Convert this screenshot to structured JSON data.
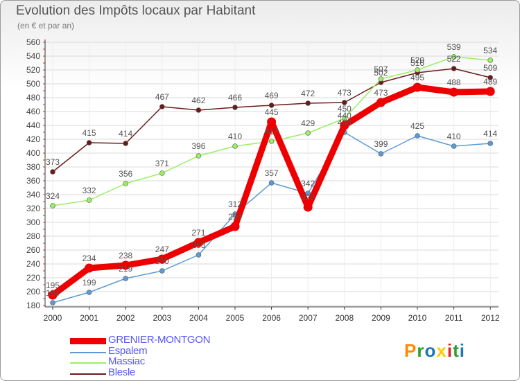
{
  "chart_data": {
    "type": "line",
    "title": "Evolution des Impôts locaux par Habitant",
    "subtitle": "(en € et par an)",
    "x": [
      "2000",
      "2001",
      "2002",
      "2003",
      "2004",
      "2005",
      "2006",
      "2007",
      "2008",
      "2009",
      "2010",
      "2011",
      "2012"
    ],
    "ylim": [
      180,
      560
    ],
    "yticks": [
      180,
      200,
      220,
      240,
      260,
      280,
      300,
      320,
      340,
      360,
      380,
      400,
      420,
      440,
      460,
      480,
      500,
      520,
      540,
      560
    ],
    "series": [
      {
        "name": "Blesle",
        "color": "#6b1a1a",
        "values": [
          373,
          415,
          414,
          467,
          462,
          466,
          469,
          472,
          473,
          502,
          516,
          522,
          509
        ],
        "labels": [
          "373",
          "415",
          "414",
          "467",
          "462",
          "466",
          "469",
          "472",
          "473",
          "502",
          "516",
          "522",
          "509"
        ]
      },
      {
        "name": "Massiac",
        "color": "#99ee66",
        "values": [
          324,
          332,
          356,
          371,
          396,
          410,
          417,
          429,
          450,
          507,
          520,
          539,
          534
        ],
        "labels": [
          "324",
          "332",
          "356",
          "371",
          "396",
          "410",
          "417",
          "429",
          "450",
          "507",
          "520",
          "539",
          "534"
        ]
      },
      {
        "name": "Espalem",
        "color": "#5b9bd5",
        "values": [
          184,
          199,
          219,
          230,
          253,
          312,
          357,
          342,
          430,
          399,
          425,
          410,
          414
        ],
        "labels": [
          "184",
          "199",
          "219",
          "230",
          "253",
          "312",
          "357",
          "342",
          "430",
          "399",
          "425",
          "410",
          "414"
        ]
      },
      {
        "name": "GRENIER-MONTGON",
        "color": "#ee0000",
        "values": [
          195,
          234,
          238,
          247,
          271,
          294,
          445,
          322,
          440,
          473,
          495,
          488,
          489
        ],
        "labels": [
          "195",
          "234",
          "238",
          "247",
          "271",
          "294",
          "445",
          "322",
          "440",
          "473",
          "495",
          "488",
          "489"
        ]
      }
    ]
  },
  "legend": {
    "items": [
      {
        "label": "GRENIER-MONTGON"
      },
      {
        "label": "Espalem"
      },
      {
        "label": "Massiac"
      },
      {
        "label": "Blesle"
      }
    ]
  },
  "logo": {
    "letters": [
      "P",
      "r",
      "o",
      "x",
      "i",
      "t",
      "i"
    ],
    "colors": [
      "#ff8a00",
      "#2ca02c",
      "#1f77b4",
      "#ffcc00",
      "#d62728",
      "#2ca02c",
      "#1f77b4"
    ]
  }
}
